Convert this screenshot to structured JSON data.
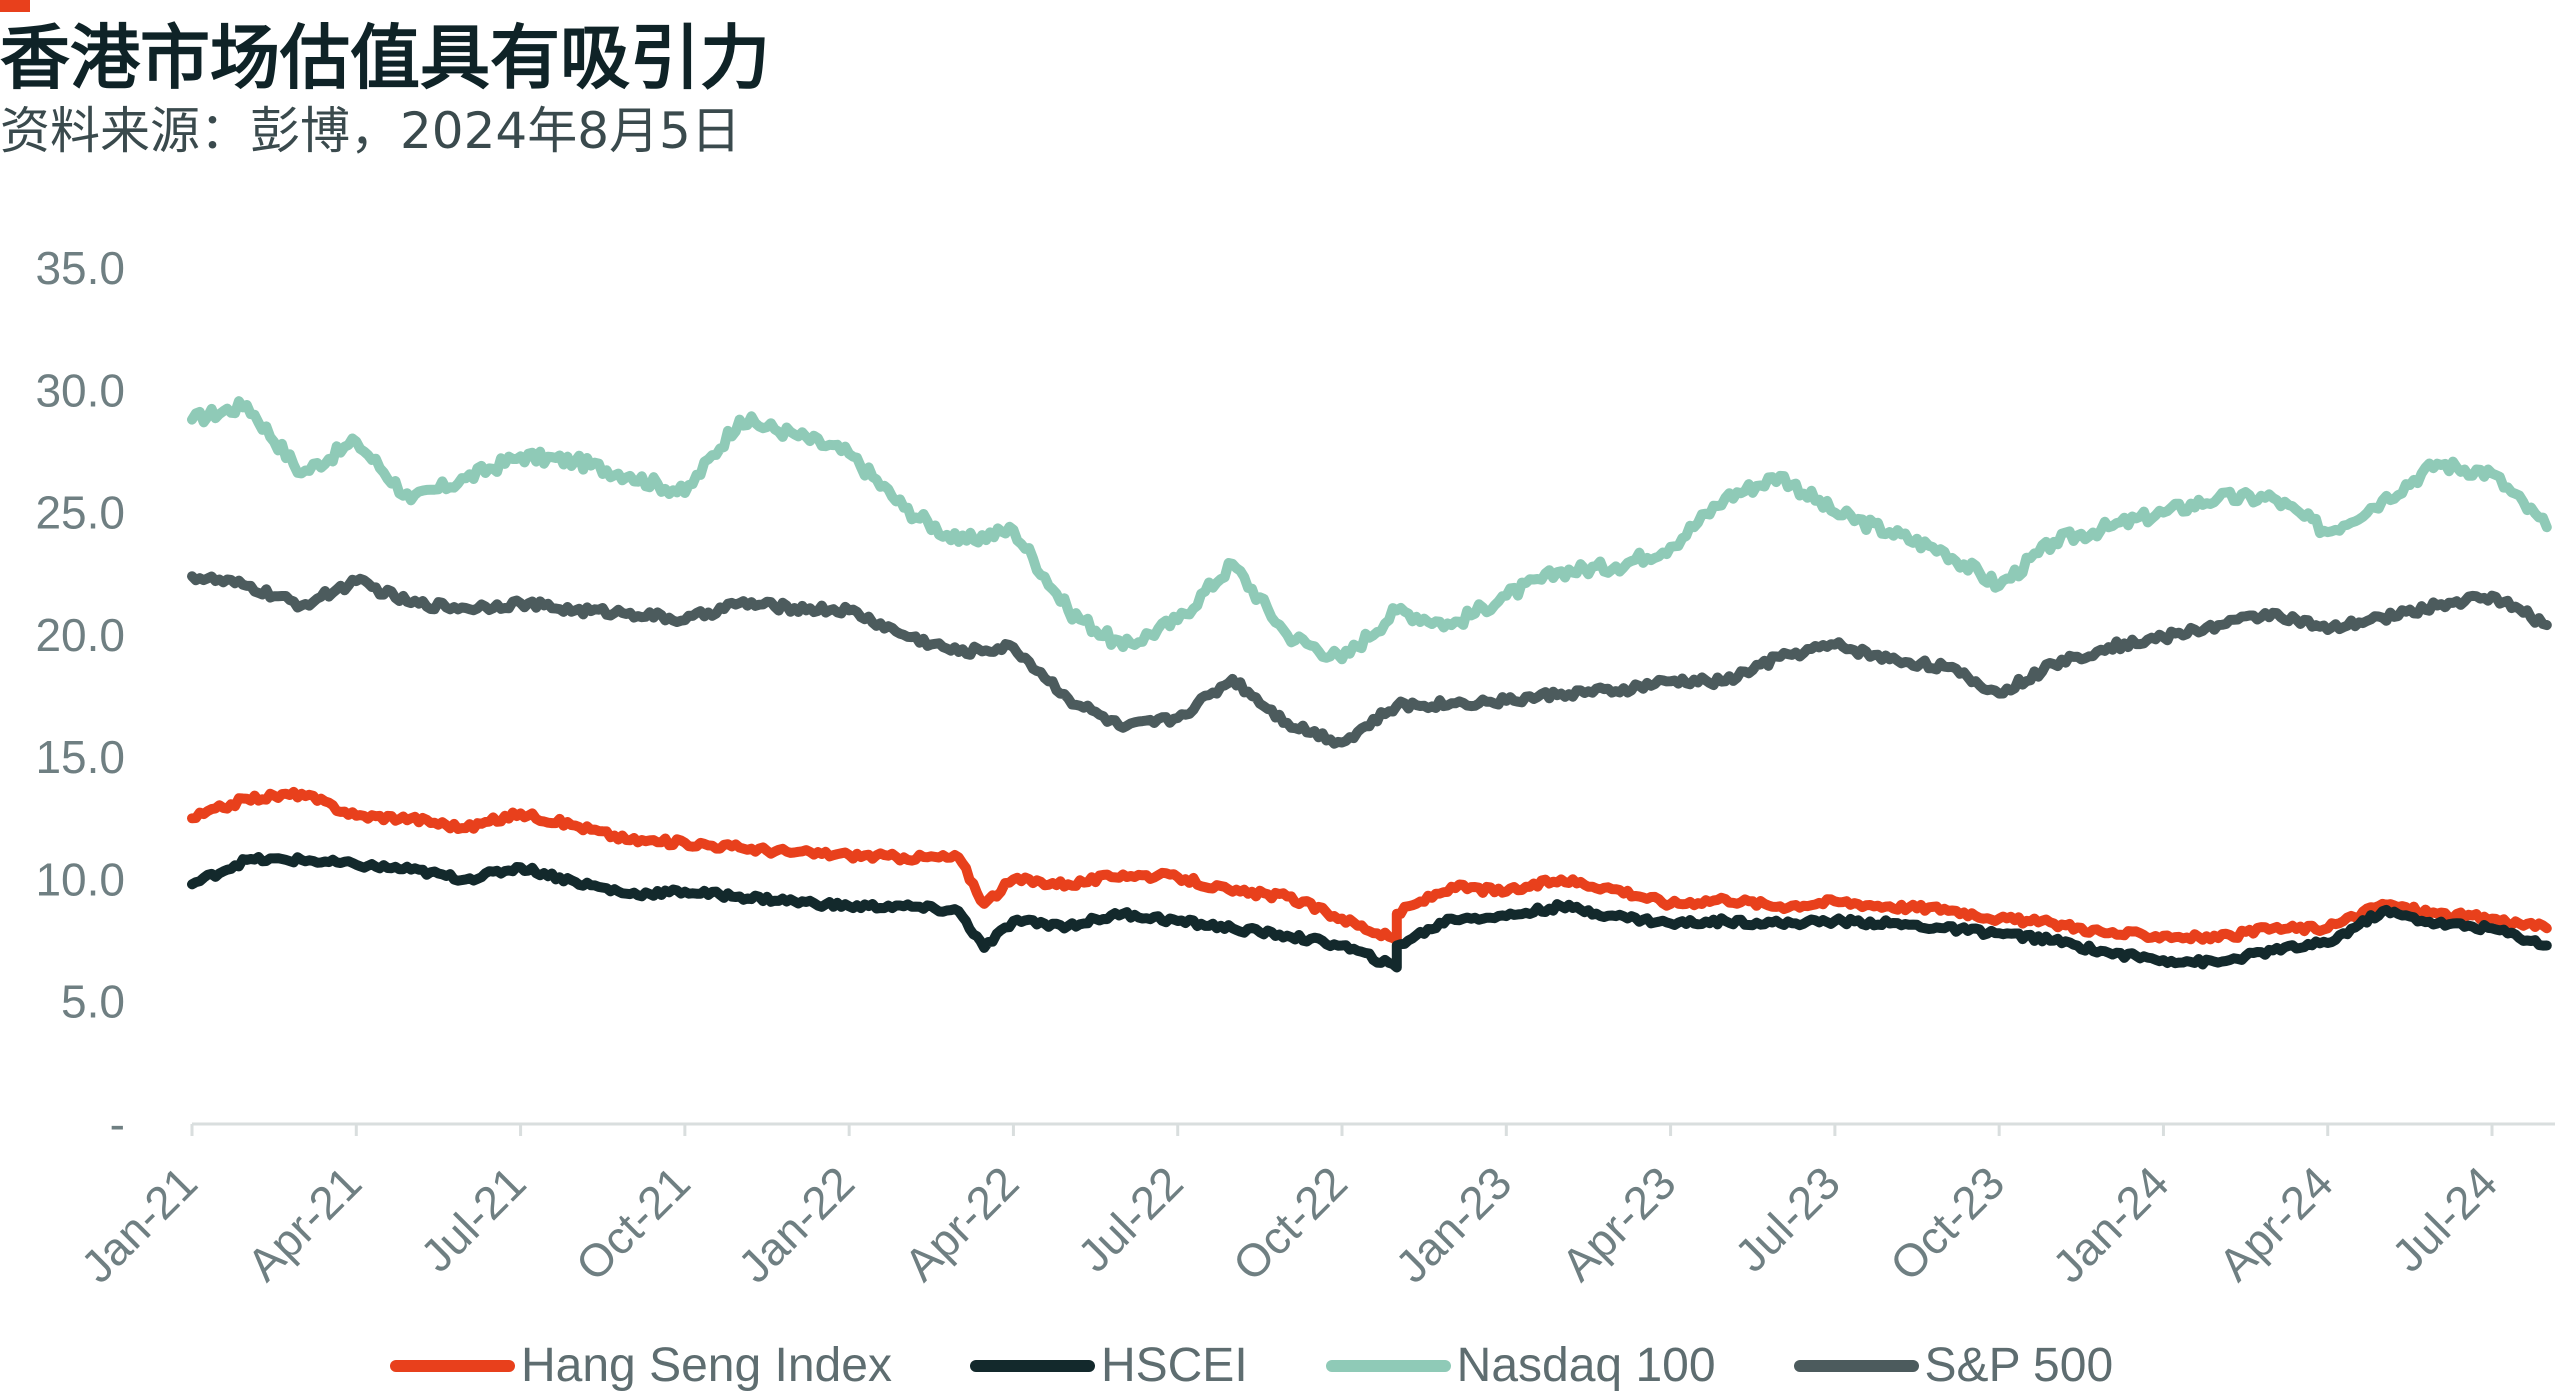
{
  "header": {
    "title": "香港市场估值具有吸引力",
    "subtitle": "资料来源：彭博，2024年8月5日"
  },
  "colors": {
    "accent": "#e8401c",
    "hang_seng": "#e8401c",
    "hscei": "#13292c",
    "nasdaq": "#8fcab7",
    "sp500": "#4c5b5d",
    "axis": "#d9dede",
    "tick_text": "#6f7f82"
  },
  "chart_data": {
    "type": "line",
    "title": "香港市场估值具有吸引力",
    "subtitle": "资料来源：彭博，2024年8月5日",
    "xlabel": "",
    "ylabel": "",
    "x_range": [
      "2021-01",
      "2024-08"
    ],
    "x_ticks": [
      "Jan-21",
      "Apr-21",
      "Jul-21",
      "Oct-21",
      "Jan-22",
      "Apr-22",
      "Jul-22",
      "Oct-22",
      "Jan-23",
      "Apr-23",
      "Jul-23",
      "Oct-23",
      "Jan-24",
      "Apr-24",
      "Jul-24"
    ],
    "y_ticks": [
      "-",
      "5.0",
      "10.0",
      "15.0",
      "20.0",
      "25.0",
      "30.0",
      "35.0"
    ],
    "ylim": [
      0,
      35
    ],
    "grid": false,
    "legend_position": "bottom",
    "series": [
      {
        "name": "Hang Seng Index",
        "color_key": "hang_seng",
        "points": [
          [
            "2021-01",
            12.5
          ],
          [
            "2021-02",
            13.3
          ],
          [
            "2021-03",
            13.5
          ],
          [
            "2021-04",
            12.6
          ],
          [
            "2021-05",
            12.5
          ],
          [
            "2021-06",
            12.1
          ],
          [
            "2021-07",
            12.7
          ],
          [
            "2021-08",
            12.2
          ],
          [
            "2021-09",
            11.6
          ],
          [
            "2021-10",
            11.5
          ],
          [
            "2021-11",
            11.3
          ],
          [
            "2021-12",
            11.1
          ],
          [
            "2022-01",
            11.0
          ],
          [
            "2022-02",
            10.9
          ],
          [
            "2022-03",
            10.9
          ],
          [
            "2022-03-15",
            9.0
          ],
          [
            "2022-04",
            10.0
          ],
          [
            "2022-05",
            9.8
          ],
          [
            "2022-06",
            10.2
          ],
          [
            "2022-07",
            10.1
          ],
          [
            "2022-08",
            9.5
          ],
          [
            "2022-09",
            9.3
          ],
          [
            "2022-10",
            8.4
          ],
          [
            "2022-10-31",
            7.5
          ],
          [
            "2022-11",
            8.6
          ],
          [
            "2022-12",
            9.7
          ],
          [
            "2023-01",
            9.5
          ],
          [
            "2023-02",
            10.0
          ],
          [
            "2023-03",
            9.6
          ],
          [
            "2023-04",
            9.0
          ],
          [
            "2023-05",
            9.2
          ],
          [
            "2023-06",
            8.9
          ],
          [
            "2023-07",
            9.1
          ],
          [
            "2023-08",
            8.9
          ],
          [
            "2023-09",
            8.8
          ],
          [
            "2023-10",
            8.4
          ],
          [
            "2023-11",
            8.2
          ],
          [
            "2023-12",
            7.8
          ],
          [
            "2024-01",
            7.7
          ],
          [
            "2024-02",
            7.6
          ],
          [
            "2024-03",
            8.0
          ],
          [
            "2024-04",
            8.0
          ],
          [
            "2024-05",
            9.0
          ],
          [
            "2024-06",
            8.6
          ],
          [
            "2024-07",
            8.4
          ],
          [
            "2024-08",
            8.0
          ]
        ]
      },
      {
        "name": "HSCEI",
        "color_key": "hscei",
        "points": [
          [
            "2021-01",
            9.8
          ],
          [
            "2021-02",
            10.8
          ],
          [
            "2021-03",
            10.8
          ],
          [
            "2021-04",
            10.6
          ],
          [
            "2021-05",
            10.4
          ],
          [
            "2021-06",
            10.0
          ],
          [
            "2021-07",
            10.5
          ],
          [
            "2021-08",
            9.9
          ],
          [
            "2021-09",
            9.4
          ],
          [
            "2021-10",
            9.5
          ],
          [
            "2021-11",
            9.3
          ],
          [
            "2021-12",
            9.1
          ],
          [
            "2022-01",
            8.9
          ],
          [
            "2022-02",
            8.9
          ],
          [
            "2022-03",
            8.7
          ],
          [
            "2022-03-15",
            7.2
          ],
          [
            "2022-04",
            8.3
          ],
          [
            "2022-05",
            8.1
          ],
          [
            "2022-06",
            8.6
          ],
          [
            "2022-07",
            8.3
          ],
          [
            "2022-08",
            8.0
          ],
          [
            "2022-09",
            7.7
          ],
          [
            "2022-10",
            7.3
          ],
          [
            "2022-10-31",
            6.4
          ],
          [
            "2022-11",
            7.3
          ],
          [
            "2022-12",
            8.4
          ],
          [
            "2023-01",
            8.5
          ],
          [
            "2023-02",
            8.9
          ],
          [
            "2023-03",
            8.5
          ],
          [
            "2023-04",
            8.2
          ],
          [
            "2023-05",
            8.3
          ],
          [
            "2023-06",
            8.2
          ],
          [
            "2023-07",
            8.3
          ],
          [
            "2023-08",
            8.2
          ],
          [
            "2023-09",
            8.0
          ],
          [
            "2023-10",
            7.8
          ],
          [
            "2023-11",
            7.5
          ],
          [
            "2023-12",
            7.0
          ],
          [
            "2024-01",
            6.7
          ],
          [
            "2024-02",
            6.6
          ],
          [
            "2024-03",
            7.1
          ],
          [
            "2024-04",
            7.4
          ],
          [
            "2024-05",
            8.7
          ],
          [
            "2024-06",
            8.2
          ],
          [
            "2024-07",
            8.0
          ],
          [
            "2024-08",
            7.3
          ]
        ]
      },
      {
        "name": "Nasdaq 100",
        "color_key": "nasdaq",
        "points": [
          [
            "2021-01",
            28.8
          ],
          [
            "2021-02",
            29.4
          ],
          [
            "2021-03",
            26.6
          ],
          [
            "2021-04",
            27.9
          ],
          [
            "2021-05",
            25.5
          ],
          [
            "2021-06",
            26.4
          ],
          [
            "2021-07",
            27.3
          ],
          [
            "2021-08",
            27.1
          ],
          [
            "2021-09",
            26.5
          ],
          [
            "2021-10",
            25.8
          ],
          [
            "2021-11",
            28.8
          ],
          [
            "2021-12",
            28.2
          ],
          [
            "2022-01",
            27.4
          ],
          [
            "2022-02",
            25.2
          ],
          [
            "2022-03",
            23.8
          ],
          [
            "2022-04",
            24.3
          ],
          [
            "2022-05",
            21.0
          ],
          [
            "2022-06",
            19.5
          ],
          [
            "2022-07",
            20.6
          ],
          [
            "2022-08",
            22.9
          ],
          [
            "2022-09",
            20.0
          ],
          [
            "2022-10",
            19.0
          ],
          [
            "2022-11",
            21.0
          ],
          [
            "2022-12",
            20.4
          ],
          [
            "2023-01",
            21.6
          ],
          [
            "2023-02",
            22.6
          ],
          [
            "2023-03",
            22.8
          ],
          [
            "2023-04",
            23.6
          ],
          [
            "2023-05",
            25.6
          ],
          [
            "2023-06",
            26.5
          ],
          [
            "2023-07",
            25.0
          ],
          [
            "2023-08",
            24.2
          ],
          [
            "2023-09",
            23.4
          ],
          [
            "2023-10",
            22.0
          ],
          [
            "2023-11",
            23.8
          ],
          [
            "2023-12",
            24.4
          ],
          [
            "2024-01",
            25.0
          ],
          [
            "2024-02",
            25.6
          ],
          [
            "2024-03",
            25.6
          ],
          [
            "2024-04",
            24.2
          ],
          [
            "2024-05",
            25.5
          ],
          [
            "2024-06",
            27.0
          ],
          [
            "2024-07",
            26.6
          ],
          [
            "2024-08",
            24.4
          ]
        ]
      },
      {
        "name": "S&P 500",
        "color_key": "sp500",
        "points": [
          [
            "2021-01",
            22.4
          ],
          [
            "2021-02",
            22.0
          ],
          [
            "2021-03",
            21.2
          ],
          [
            "2021-04",
            22.2
          ],
          [
            "2021-05",
            21.3
          ],
          [
            "2021-06",
            21.1
          ],
          [
            "2021-07",
            21.3
          ],
          [
            "2021-08",
            21.0
          ],
          [
            "2021-09",
            20.9
          ],
          [
            "2021-10",
            20.6
          ],
          [
            "2021-11",
            21.3
          ],
          [
            "2021-12",
            21.1
          ],
          [
            "2022-01",
            21.0
          ],
          [
            "2022-02",
            20.0
          ],
          [
            "2022-03",
            19.3
          ],
          [
            "2022-04",
            19.5
          ],
          [
            "2022-05",
            17.4
          ],
          [
            "2022-06",
            16.2
          ],
          [
            "2022-07",
            16.6
          ],
          [
            "2022-08",
            18.2
          ],
          [
            "2022-09",
            16.4
          ],
          [
            "2022-10",
            15.6
          ],
          [
            "2022-11",
            17.1
          ],
          [
            "2022-12",
            17.2
          ],
          [
            "2023-01",
            17.3
          ],
          [
            "2023-02",
            17.6
          ],
          [
            "2023-03",
            17.7
          ],
          [
            "2023-04",
            18.1
          ],
          [
            "2023-05",
            18.1
          ],
          [
            "2023-06",
            19.1
          ],
          [
            "2023-07",
            19.6
          ],
          [
            "2023-08",
            19.0
          ],
          [
            "2023-09",
            18.7
          ],
          [
            "2023-10",
            17.6
          ],
          [
            "2023-11",
            18.8
          ],
          [
            "2023-12",
            19.5
          ],
          [
            "2024-01",
            19.9
          ],
          [
            "2024-02",
            20.4
          ],
          [
            "2024-03",
            20.9
          ],
          [
            "2024-04",
            20.2
          ],
          [
            "2024-05",
            20.7
          ],
          [
            "2024-06",
            21.2
          ],
          [
            "2024-07",
            21.6
          ],
          [
            "2024-08",
            20.4
          ]
        ]
      }
    ]
  }
}
